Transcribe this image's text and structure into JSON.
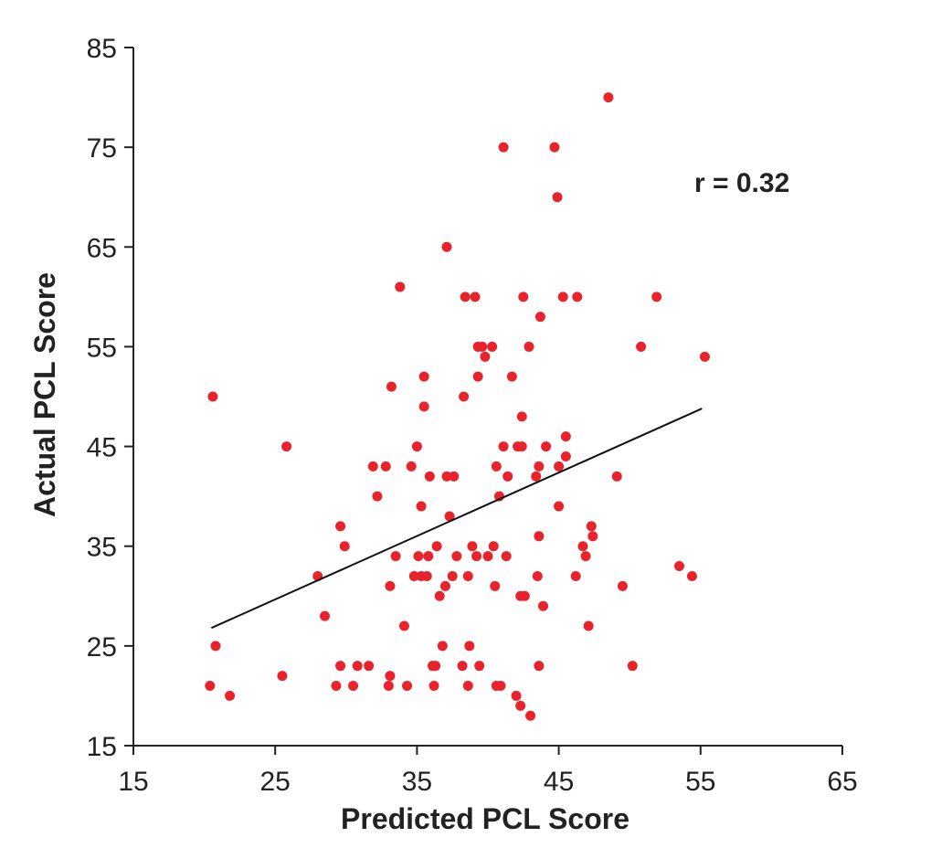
{
  "chart_data": {
    "type": "scatter",
    "title": "",
    "xlabel": "Predicted PCL Score",
    "ylabel": "Actual PCL Score",
    "xlim": [
      15,
      65
    ],
    "ylim": [
      15,
      85
    ],
    "xticks": [
      15,
      25,
      35,
      45,
      55,
      65
    ],
    "yticks": [
      15,
      25,
      35,
      45,
      55,
      65,
      75,
      85
    ],
    "grid": false,
    "annotation": "r = 0.32",
    "point_color": "#e8232b",
    "trendline": {
      "x": [
        20.5,
        55.1
      ],
      "y": [
        26.8,
        48.8
      ],
      "color": "#111111"
    },
    "points": [
      {
        "x": 20.6,
        "y": 50
      },
      {
        "x": 20.8,
        "y": 25
      },
      {
        "x": 20.4,
        "y": 21
      },
      {
        "x": 21.8,
        "y": 20
      },
      {
        "x": 25.5,
        "y": 22
      },
      {
        "x": 25.8,
        "y": 45
      },
      {
        "x": 28.0,
        "y": 32
      },
      {
        "x": 28.5,
        "y": 28
      },
      {
        "x": 29.3,
        "y": 21
      },
      {
        "x": 29.6,
        "y": 23
      },
      {
        "x": 29.6,
        "y": 37
      },
      {
        "x": 29.9,
        "y": 35
      },
      {
        "x": 30.5,
        "y": 21
      },
      {
        "x": 30.8,
        "y": 23
      },
      {
        "x": 31.6,
        "y": 23
      },
      {
        "x": 31.9,
        "y": 43
      },
      {
        "x": 32.2,
        "y": 40
      },
      {
        "x": 32.8,
        "y": 43
      },
      {
        "x": 33.0,
        "y": 21
      },
      {
        "x": 33.1,
        "y": 22
      },
      {
        "x": 33.1,
        "y": 31
      },
      {
        "x": 33.2,
        "y": 51
      },
      {
        "x": 33.5,
        "y": 34
      },
      {
        "x": 33.8,
        "y": 61
      },
      {
        "x": 34.1,
        "y": 27
      },
      {
        "x": 34.3,
        "y": 21
      },
      {
        "x": 34.6,
        "y": 43
      },
      {
        "x": 34.8,
        "y": 32
      },
      {
        "x": 35.0,
        "y": 45
      },
      {
        "x": 35.1,
        "y": 34
      },
      {
        "x": 35.3,
        "y": 39
      },
      {
        "x": 35.3,
        "y": 32
      },
      {
        "x": 35.5,
        "y": 49
      },
      {
        "x": 35.5,
        "y": 52
      },
      {
        "x": 35.7,
        "y": 32
      },
      {
        "x": 35.8,
        "y": 34
      },
      {
        "x": 35.9,
        "y": 42
      },
      {
        "x": 36.1,
        "y": 23
      },
      {
        "x": 36.2,
        "y": 21
      },
      {
        "x": 36.3,
        "y": 23
      },
      {
        "x": 36.4,
        "y": 35
      },
      {
        "x": 36.6,
        "y": 30
      },
      {
        "x": 36.8,
        "y": 25
      },
      {
        "x": 37.0,
        "y": 31
      },
      {
        "x": 37.1,
        "y": 65
      },
      {
        "x": 37.1,
        "y": 42
      },
      {
        "x": 37.3,
        "y": 38
      },
      {
        "x": 37.5,
        "y": 32
      },
      {
        "x": 37.6,
        "y": 42
      },
      {
        "x": 37.8,
        "y": 34
      },
      {
        "x": 38.2,
        "y": 23
      },
      {
        "x": 38.3,
        "y": 50
      },
      {
        "x": 38.4,
        "y": 60
      },
      {
        "x": 38.6,
        "y": 32
      },
      {
        "x": 38.6,
        "y": 21
      },
      {
        "x": 38.7,
        "y": 25
      },
      {
        "x": 38.9,
        "y": 35
      },
      {
        "x": 39.1,
        "y": 60
      },
      {
        "x": 39.2,
        "y": 34
      },
      {
        "x": 39.3,
        "y": 52
      },
      {
        "x": 39.3,
        "y": 55
      },
      {
        "x": 39.4,
        "y": 23
      },
      {
        "x": 39.6,
        "y": 55
      },
      {
        "x": 39.8,
        "y": 54
      },
      {
        "x": 40.0,
        "y": 34
      },
      {
        "x": 40.3,
        "y": 55
      },
      {
        "x": 40.4,
        "y": 35
      },
      {
        "x": 40.5,
        "y": 31
      },
      {
        "x": 40.6,
        "y": 21
      },
      {
        "x": 40.6,
        "y": 43
      },
      {
        "x": 40.8,
        "y": 40
      },
      {
        "x": 40.9,
        "y": 21
      },
      {
        "x": 41.1,
        "y": 45
      },
      {
        "x": 41.1,
        "y": 75
      },
      {
        "x": 41.3,
        "y": 34
      },
      {
        "x": 41.4,
        "y": 42
      },
      {
        "x": 41.7,
        "y": 52
      },
      {
        "x": 42.0,
        "y": 20
      },
      {
        "x": 42.1,
        "y": 45
      },
      {
        "x": 42.3,
        "y": 19
      },
      {
        "x": 42.3,
        "y": 30
      },
      {
        "x": 42.4,
        "y": 48
      },
      {
        "x": 42.4,
        "y": 45
      },
      {
        "x": 42.5,
        "y": 60
      },
      {
        "x": 42.6,
        "y": 30
      },
      {
        "x": 42.9,
        "y": 55
      },
      {
        "x": 43.0,
        "y": 18
      },
      {
        "x": 43.4,
        "y": 42
      },
      {
        "x": 43.5,
        "y": 32
      },
      {
        "x": 43.6,
        "y": 36
      },
      {
        "x": 43.6,
        "y": 43
      },
      {
        "x": 43.6,
        "y": 23
      },
      {
        "x": 43.7,
        "y": 58
      },
      {
        "x": 43.9,
        "y": 29
      },
      {
        "x": 44.1,
        "y": 45
      },
      {
        "x": 44.7,
        "y": 75
      },
      {
        "x": 44.9,
        "y": 70
      },
      {
        "x": 45.0,
        "y": 39
      },
      {
        "x": 45.0,
        "y": 43
      },
      {
        "x": 45.3,
        "y": 60
      },
      {
        "x": 45.5,
        "y": 46
      },
      {
        "x": 45.5,
        "y": 44
      },
      {
        "x": 46.2,
        "y": 32
      },
      {
        "x": 46.3,
        "y": 60
      },
      {
        "x": 46.7,
        "y": 35
      },
      {
        "x": 46.9,
        "y": 34
      },
      {
        "x": 47.1,
        "y": 27
      },
      {
        "x": 47.3,
        "y": 37
      },
      {
        "x": 47.4,
        "y": 36
      },
      {
        "x": 48.5,
        "y": 80
      },
      {
        "x": 49.1,
        "y": 42
      },
      {
        "x": 49.5,
        "y": 31
      },
      {
        "x": 50.2,
        "y": 23
      },
      {
        "x": 50.8,
        "y": 55
      },
      {
        "x": 51.9,
        "y": 60
      },
      {
        "x": 53.5,
        "y": 33
      },
      {
        "x": 54.4,
        "y": 32
      },
      {
        "x": 55.3,
        "y": 54
      }
    ]
  }
}
